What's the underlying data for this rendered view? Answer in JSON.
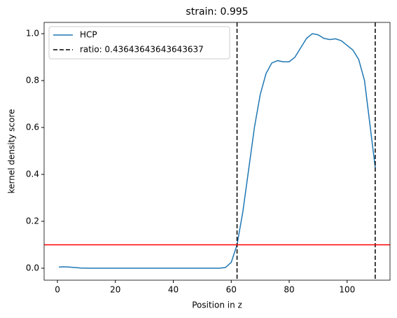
{
  "chart_data": {
    "type": "line",
    "title": "strain: 0.995",
    "x_label": "Position in z",
    "y_label": "kernel density score",
    "xlim": [
      -4.6,
      114.8
    ],
    "ylim": [
      -0.051,
      1.048
    ],
    "xticks": [
      0,
      20,
      40,
      60,
      80,
      100
    ],
    "yticks": [
      {
        "value": 0,
        "label": "0.0"
      },
      {
        "value": 0.2,
        "label": "0.2"
      },
      {
        "value": 0.4,
        "label": "0.4"
      },
      {
        "value": 0.6,
        "label": "0.6"
      },
      {
        "value": 0.8,
        "label": "0.8"
      },
      {
        "value": 1.0,
        "label": "1.0"
      }
    ],
    "legend": "upper left",
    "series": [
      {
        "name": "HCP",
        "color": "#1f77b4",
        "x": [
          0.5,
          2,
          4,
          8,
          12,
          20,
          30,
          40,
          50,
          56,
          58,
          60,
          62,
          64,
          66,
          68,
          70,
          72,
          74,
          76,
          78,
          80,
          82,
          84,
          86,
          88,
          90,
          92,
          94,
          96,
          98,
          100,
          102,
          104,
          106,
          108,
          109.7
        ],
        "values": [
          0.005,
          0.006,
          0.005,
          0.001,
          0,
          0,
          0,
          0,
          0,
          0,
          0.003,
          0.025,
          0.1,
          0.24,
          0.42,
          0.6,
          0.74,
          0.83,
          0.875,
          0.885,
          0.88,
          0.88,
          0.9,
          0.94,
          0.98,
          1.0,
          0.995,
          0.98,
          0.975,
          0.978,
          0.97,
          0.95,
          0.93,
          0.89,
          0.8,
          0.6,
          0.43
        ]
      },
      {
        "name": "ratio: 0.43643643643643637",
        "color": "#000000",
        "style": "dashed",
        "kind": "vline",
        "x": [
          62,
          109.7
        ]
      }
    ],
    "hline": {
      "value": 0.1,
      "color": "#ff0000"
    }
  }
}
